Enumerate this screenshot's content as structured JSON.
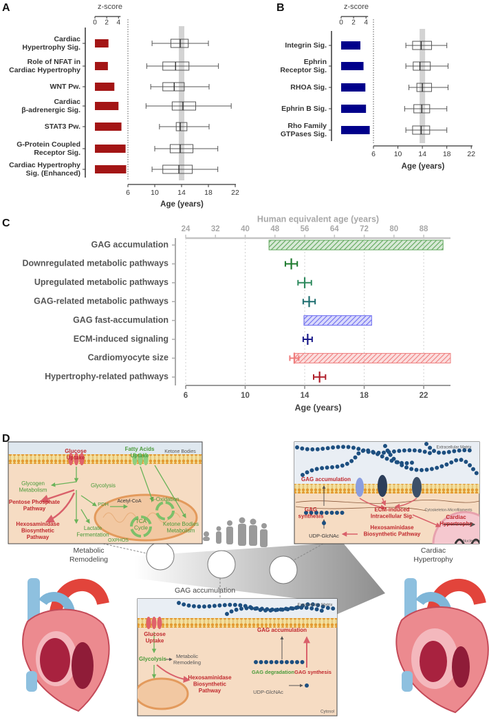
{
  "chart_data": [
    {
      "panel": "A",
      "type": "bar",
      "xlabel": "z-score",
      "xlim": [
        0,
        5.6
      ],
      "xticks": [
        0,
        2,
        4
      ],
      "color": "#a31515",
      "categories": [
        [
          "Cardiac",
          "Hypertrophy Sig."
        ],
        [
          "Role of NFAT in",
          "Cardiac Hypertrophy"
        ],
        [
          "WNT Pw."
        ],
        [
          "Cardiac",
          "β-adrenergic Sig."
        ],
        [
          "STAT3 Pw."
        ],
        [
          "G-Protein Coupled",
          "Receptor Sig."
        ],
        [
          "Cardiac Hypertrophy",
          "Sig. (Enhanced)"
        ]
      ],
      "values": [
        2.3,
        2.2,
        3.3,
        4.0,
        4.5,
        5.2,
        5.3
      ],
      "box": {
        "xlabel": "Age (years)",
        "xlim": [
          6,
          22.1
        ],
        "xticks": [
          6,
          10,
          14,
          18,
          22
        ],
        "band": 14,
        "color": "#555555",
        "stats": [
          [
            9.6,
            12.4,
            13.8,
            15.0,
            18.0
          ],
          [
            8.8,
            11.2,
            13.1,
            15.1,
            19.5
          ],
          [
            9.4,
            11.2,
            12.9,
            14.4,
            18.1
          ],
          [
            8.7,
            12.6,
            14.2,
            16.1,
            21.4
          ],
          [
            10.7,
            13.2,
            13.8,
            14.8,
            18.1
          ],
          [
            10.0,
            12.3,
            13.8,
            15.7,
            19.4
          ],
          [
            9.6,
            11.2,
            13.6,
            15.6,
            19.4
          ]
        ]
      }
    },
    {
      "panel": "B",
      "type": "bar",
      "xlabel": "z-score",
      "xlim": [
        0,
        5.2
      ],
      "xticks": [
        0,
        2,
        4
      ],
      "color": "#00008b",
      "categories": [
        [
          "Integrin Sig."
        ],
        [
          "Ephrin",
          "Receptor Sig."
        ],
        [
          "RHOA Sig."
        ],
        [
          "Ephrin B Sig."
        ],
        [
          "Rho Family",
          "GTPases Sig."
        ]
      ],
      "values": [
        3.1,
        3.6,
        3.9,
        4.0,
        4.6
      ],
      "box": {
        "xlabel": "Age (years)",
        "xlim": [
          6,
          22.2
        ],
        "xticks": [
          6,
          10,
          14,
          18,
          22
        ],
        "band": 14,
        "color": "#555555",
        "stats": [
          [
            11.3,
            12.4,
            13.8,
            15.5,
            18.0
          ],
          [
            11.3,
            12.5,
            13.6,
            15.3,
            18.2
          ],
          [
            11.8,
            13.1,
            14.0,
            15.5,
            18.2
          ],
          [
            11.1,
            12.6,
            13.9,
            15.2,
            18.0
          ],
          [
            11.3,
            12.4,
            13.8,
            15.2,
            18.0
          ]
        ]
      }
    },
    {
      "panel": "C",
      "type": "range",
      "xlabel": "Age (years)",
      "xlim": [
        6,
        23.8
      ],
      "xticks": [
        6,
        10,
        14,
        18,
        22
      ],
      "x2label": "Human equivalent age (years)",
      "x2lim": [
        24,
        95.2
      ],
      "x2ticks": [
        24,
        32,
        40,
        48,
        56,
        64,
        72,
        80,
        88
      ],
      "grid": true,
      "categories": [
        "GAG accumulation",
        "Downregulated metabolic pathways",
        "Upregulated metabolic pathways",
        "GAG-related metabolic pathways",
        "GAG fast-accumulation",
        "ECM-induced signaling",
        "Cardiomyocyte size",
        "Hypertrophy-related pathways"
      ],
      "colors": [
        "#5ea65a",
        "#1e7a2e",
        "#2e8a5e",
        "#1f6f70",
        "#6c6cf0",
        "#1a1a8a",
        "#ef7d7d",
        "#b01f2a"
      ],
      "starts": [
        11.6,
        null,
        null,
        null,
        13.95,
        null,
        13.3,
        null
      ],
      "ends": [
        23.3,
        null,
        null,
        null,
        18.5,
        null,
        23.8,
        null
      ],
      "means": [
        null,
        13.1,
        14.0,
        14.3,
        null,
        14.2,
        13.3,
        15.0
      ],
      "errors": [
        null,
        0.4,
        0.45,
        0.4,
        null,
        0.3,
        0.3,
        0.4
      ]
    }
  ],
  "diagram": {
    "panel": "D",
    "metabolic": {
      "texts": [
        [
          "Glucose",
          "Uptake"
        ],
        [
          "Fatty Acids",
          "Uptake"
        ],
        [
          "Ketone Bodies"
        ],
        [
          "Glycogen",
          "Metabolism"
        ],
        [
          "Glycolysis"
        ],
        [
          "Pentose Phosphate",
          "Pathway"
        ],
        [
          "PDH"
        ],
        [
          "Acetyl-CoA"
        ],
        [
          "β-Oxidation"
        ],
        [
          "Hexosaminidase",
          "Biosynthetic",
          "Pathway"
        ],
        [
          "TCA",
          "Cycle"
        ],
        [
          "Ketone Bodies",
          "Metabolism"
        ],
        [
          "Lactate",
          "Fermentation"
        ],
        [
          "OXPHOS"
        ]
      ],
      "label": [
        "Metabolic",
        "Remodeling"
      ]
    },
    "hypertrophy": {
      "texts": [
        [
          "Extracellular Matrix"
        ],
        [
          "GAG accumulation"
        ],
        [
          "Cytoskeleton-Microfilaments"
        ],
        [
          "GAG",
          "synthesis"
        ],
        [
          "ECM-induced",
          "Intracellular Sig."
        ],
        [
          "Cardiac",
          "Hypertrophy"
        ],
        [
          "UDP-GlcNAc"
        ],
        [
          "Hexosaminidase",
          "Biosynthetic Pathway"
        ],
        [
          "Nucleus"
        ]
      ],
      "label": [
        "Cardiac",
        "Hypertrophy"
      ]
    },
    "gag": {
      "texts": [
        [
          "Extracellular Matrix"
        ],
        [
          "Glucose",
          "Uptake"
        ],
        [
          "GAG accumulation"
        ],
        [
          "Glycolysis"
        ],
        [
          "Metabolic",
          "Remodeling"
        ],
        [
          "GAG degradation"
        ],
        [
          "GAG synthesis"
        ],
        [
          "Hexosaminidase",
          "Biosynthetic",
          "Pathway"
        ],
        [
          "UDP-GlcNAc"
        ],
        [
          "Cytosol"
        ]
      ],
      "label": [
        "GAG accumulation"
      ]
    }
  }
}
